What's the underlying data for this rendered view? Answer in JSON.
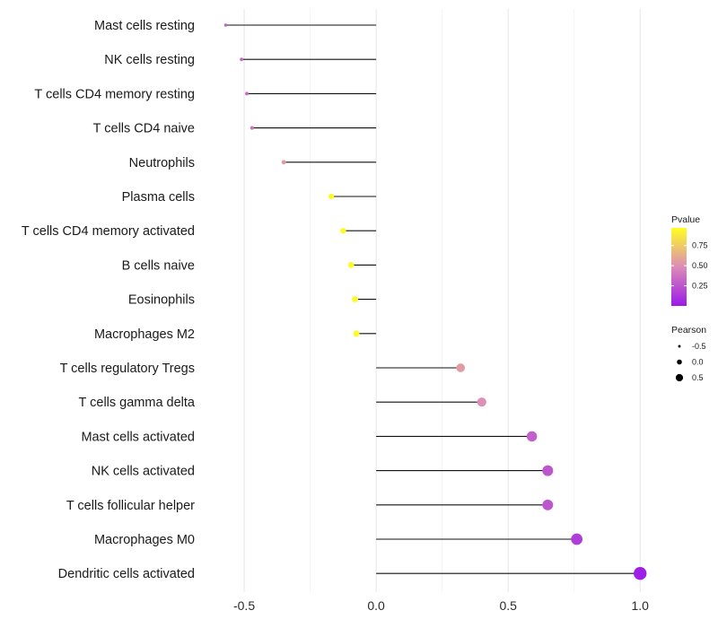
{
  "chart_data": {
    "type": "lollipop",
    "categories": [
      "Mast cells resting",
      "NK cells resting",
      "T cells CD4 memory resting",
      "T cells CD4 naive",
      "Neutrophils",
      "Plasma cells",
      "T cells CD4 memory activated",
      "B cells naive",
      "Eosinophils",
      "Macrophages M2",
      "T cells regulatory  Tregs ",
      "T cells gamma delta",
      "Mast cells activated",
      "NK cells activated",
      "T cells follicular helper",
      "Macrophages M0",
      "Dendritic cells activated"
    ],
    "values": [
      -0.57,
      -0.51,
      -0.49,
      -0.47,
      -0.35,
      -0.17,
      -0.125,
      -0.095,
      -0.08,
      -0.075,
      0.32,
      0.4,
      0.59,
      0.65,
      0.65,
      0.76,
      1.0
    ],
    "pvalues": [
      0.3,
      0.33,
      0.35,
      0.38,
      0.55,
      0.95,
      0.95,
      0.95,
      0.95,
      0.95,
      0.55,
      0.5,
      0.3,
      0.25,
      0.25,
      0.15,
      0.02
    ],
    "xlim": [
      -0.66,
      1.04
    ],
    "xticks": [
      -0.5,
      0.0,
      0.5,
      1.0
    ],
    "xtick_labels": [
      "-0.5",
      "0.0",
      "0.5",
      "1.0"
    ],
    "grid": true,
    "legend_color": {
      "title": "Pvalue",
      "ticks": [
        0.25,
        0.5,
        0.75
      ],
      "tick_labels": [
        "0.25",
        "0.50",
        "0.75"
      ],
      "range": [
        0.0,
        0.97
      ],
      "low_color": "#9b1ae8",
      "mid_color": "#dc8cb6",
      "high_color": "#ffff22"
    },
    "legend_size": {
      "title": "Pearson",
      "values": [
        -0.5,
        0.0,
        0.5
      ],
      "labels": [
        "-0.5",
        "0.0",
        "0.5"
      ]
    },
    "legend_position": "right"
  }
}
